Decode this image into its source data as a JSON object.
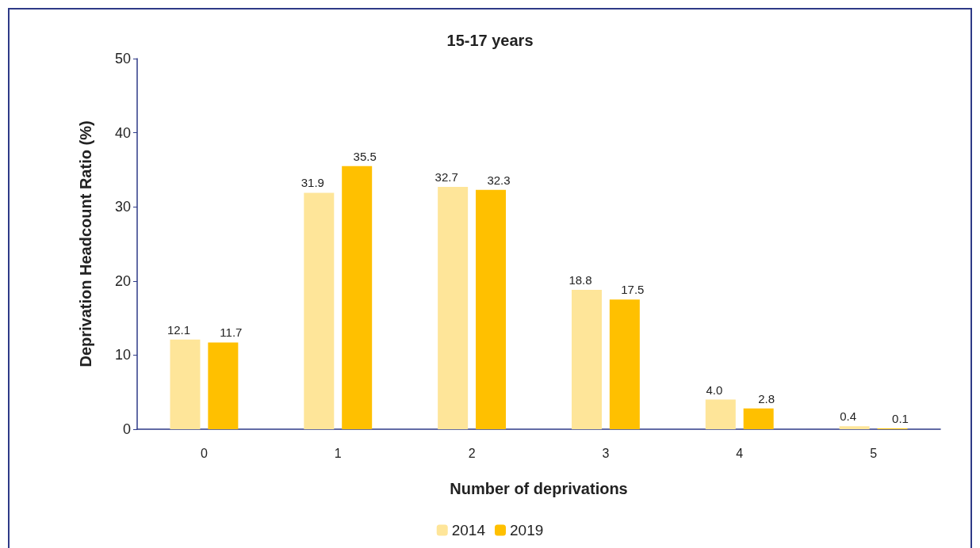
{
  "chart_data": {
    "type": "bar",
    "title": "15-17 years",
    "xlabel": "Number of deprivations",
    "ylabel": "Deprivation Headcount Ratio (%)",
    "categories": [
      "0",
      "1",
      "2",
      "3",
      "4",
      "5"
    ],
    "series": [
      {
        "name": "2014",
        "color": "#fee599",
        "values": [
          12.1,
          31.9,
          32.7,
          18.8,
          4.0,
          0.4
        ]
      },
      {
        "name": "2019",
        "color": "#ffc000",
        "values": [
          11.7,
          35.5,
          32.3,
          17.5,
          2.8,
          0.1
        ]
      }
    ],
    "value_labels": [
      [
        "12.1",
        "31.9",
        "32.7",
        "18.8",
        "4.0",
        "0.4"
      ],
      [
        "11.7",
        "35.5",
        "32.3",
        "17.5",
        "2.8",
        "0.1"
      ]
    ],
    "ylim": [
      0,
      50
    ],
    "yticks": [
      0,
      10,
      20,
      30,
      40,
      50
    ],
    "grid": false,
    "legend": "bottom"
  }
}
